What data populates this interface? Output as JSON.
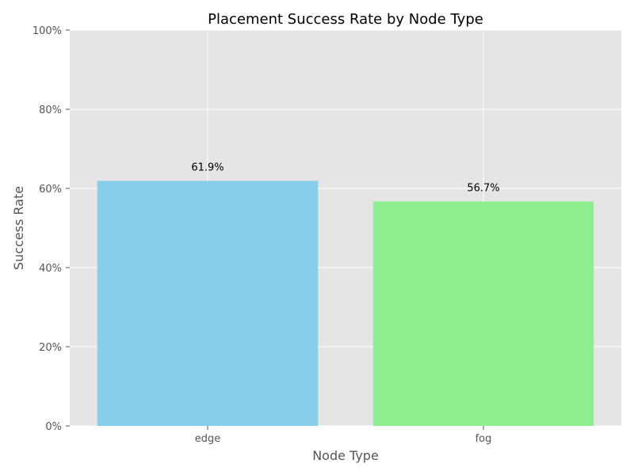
{
  "chart_data": {
    "type": "bar",
    "title": "Placement Success Rate by Node Type",
    "xlabel": "Node Type",
    "ylabel": "Success Rate",
    "categories": [
      "edge",
      "fog"
    ],
    "values": [
      0.619,
      0.567
    ],
    "value_labels": [
      "61.9%",
      "56.7%"
    ],
    "bar_colors": [
      "#87CEEB",
      "#90EE90"
    ],
    "ylim": [
      0,
      1
    ],
    "yticks": [
      0,
      0.2,
      0.4,
      0.6,
      0.8,
      1.0
    ],
    "ytick_labels": [
      "0%",
      "20%",
      "40%",
      "60%",
      "80%",
      "100%"
    ],
    "grid": true,
    "legend": "none",
    "background_color": "#E5E5E5",
    "grid_color": "#FFFFFF"
  }
}
